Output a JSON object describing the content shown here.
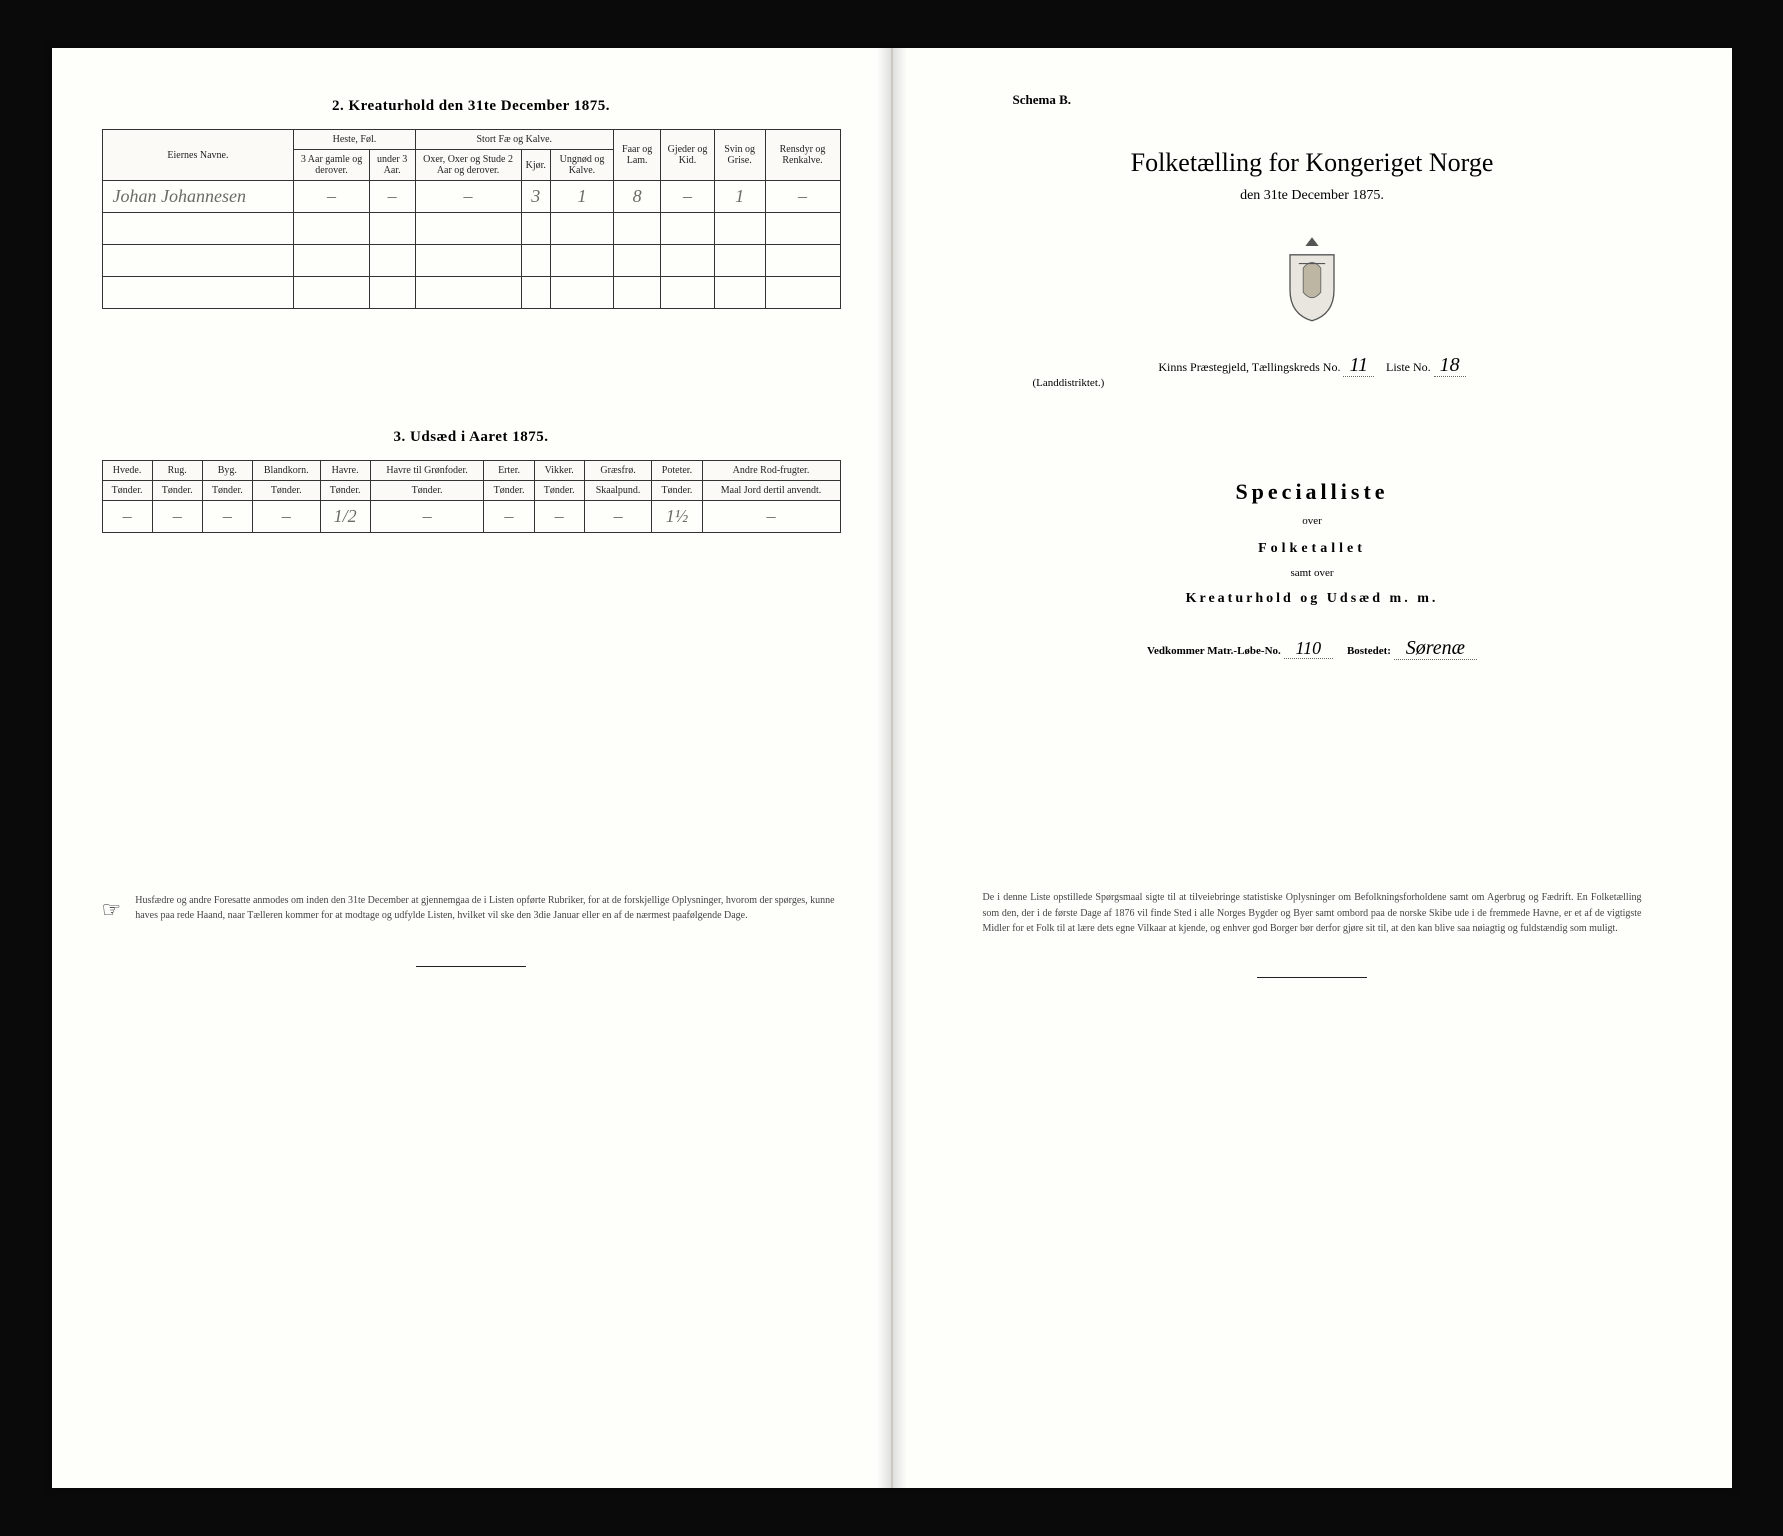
{
  "left": {
    "section2": {
      "title": "2.  Kreaturhold den 31te December 1875.",
      "cols": {
        "owner": "Eiernes Navne.",
        "horse_group": "Heste, Føl.",
        "horse_a": "3 Aar gamle og derover.",
        "horse_b": "under 3 Aar.",
        "cattle_group": "Stort Fæ og Kalve.",
        "cattle_a": "Oxer, Oxer og Stude 2 Aar og derover.",
        "cattle_b": "Kjør.",
        "cattle_c": "Ungnød og Kalve.",
        "sheep": "Faar og Lam.",
        "goat": "Gjeder og Kid.",
        "pig": "Svin og Grise.",
        "reindeer": "Rensdyr og Renkalve."
      },
      "rows": [
        {
          "owner": "Johan Johannesen",
          "h1": "–",
          "h2": "–",
          "c1": "–",
          "c2": "3",
          "c3": "1",
          "sh": "8",
          "go": "–",
          "pi": "1",
          "re": "–"
        },
        {
          "owner": "",
          "h1": "",
          "h2": "",
          "c1": "",
          "c2": "",
          "c3": "",
          "sh": "",
          "go": "",
          "pi": "",
          "re": ""
        },
        {
          "owner": "",
          "h1": "",
          "h2": "",
          "c1": "",
          "c2": "",
          "c3": "",
          "sh": "",
          "go": "",
          "pi": "",
          "re": ""
        },
        {
          "owner": "",
          "h1": "",
          "h2": "",
          "c1": "",
          "c2": "",
          "c3": "",
          "sh": "",
          "go": "",
          "pi": "",
          "re": ""
        }
      ]
    },
    "section3": {
      "title": "3.  Udsæd i Aaret 1875.",
      "cols": {
        "hvede": "Hvede.",
        "rug": "Rug.",
        "byg": "Byg.",
        "bland": "Blandkorn.",
        "havre": "Havre.",
        "havreg": "Havre til Grønfoder.",
        "erter": "Erter.",
        "vikker": "Vikker.",
        "graes": "Græsfrø.",
        "poteter": "Poteter.",
        "andre": "Andre Rod-frugter."
      },
      "units": {
        "t": "Tønder.",
        "s": "Skaalpund.",
        "m": "Maal Jord dertil anvendt."
      },
      "row": {
        "hvede": "–",
        "rug": "–",
        "byg": "–",
        "bland": "–",
        "havre": "1/2",
        "havreg": "–",
        "erter": "–",
        "vikker": "–",
        "graes": "–",
        "poteter": "1½",
        "andre": "–"
      }
    },
    "footnote": "Husfædre og andre Foresatte anmodes om inden den 31te December at gjennemgaa de i Listen opførte Rubriker, for at de forskjellige Oplysninger, hvorom der spørges, kunne haves paa rede Haand, naar Tælleren kommer for at modtage og udfylde Listen, hvilket vil ske den 3die Januar eller en af de nærmest paafølgende Dage."
  },
  "right": {
    "schema": "Schema B.",
    "title": "Folketælling for Kongeriget Norge",
    "date": "den 31te December 1875.",
    "district_prefix": "Kinns",
    "district_label1": "Præstegjeld, Tællingskreds No.",
    "kreds_no": "11",
    "list_label": "Liste No.",
    "list_no": "18",
    "land": "(Landdistriktet.)",
    "special": "Specialliste",
    "over": "over",
    "folketallet": "Folketallet",
    "samt": "samt over",
    "kreatur": "Kreaturhold  og  Udsæd  m.  m.",
    "matr_label": "Vedkommer Matr.-Løbe-No.",
    "matr_no": "110",
    "bosted_label": "Bostedet:",
    "bosted": "Sørenæ",
    "footnote": "De i denne Liste opstillede Spørgsmaal sigte til at tilveiebringe statistiske Oplysninger om Befolkningsforholdene samt om Agerbrug og Fædrift.  En Folketælling som den, der i de første Dage af 1876 vil finde Sted i alle Norges Bygder og Byer samt ombord paa de norske Skibe ude i de fremmede Havne, er et af de vigtigste Midler for et Folk til at lære dets egne Vilkaar at kjende, og enhver god Borger bør derfor gjøre sit til, at den kan blive saa nøiagtig og fuldstændig som muligt."
  }
}
